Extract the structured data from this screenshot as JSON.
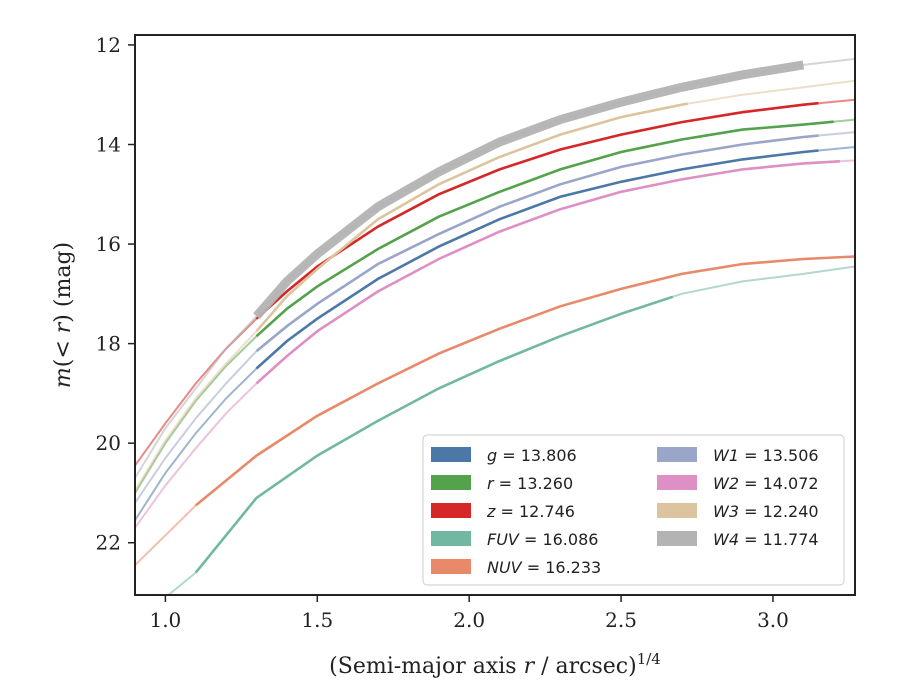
{
  "chart_data": {
    "type": "line",
    "xlabel": "(Semi-major axis r / arcsec)^{1/4}",
    "ylabel": "m(< r) (mag)",
    "xlim": [
      0.9,
      3.27
    ],
    "ylim": [
      23.05,
      11.8
    ],
    "y_inverted": true,
    "grid": false,
    "legend_position": "lower-right",
    "x_ticks": [
      1.0,
      1.5,
      2.0,
      2.5,
      3.0
    ],
    "x_tick_labels": [
      "1.0",
      "1.5",
      "2.0",
      "2.5",
      "3.0"
    ],
    "y_ticks": [
      12,
      14,
      16,
      18,
      20,
      22
    ],
    "y_tick_labels": [
      "12",
      "14",
      "16",
      "18",
      "20",
      "22"
    ],
    "series": [
      {
        "name": "g = 13.806",
        "color": "#4c78a8",
        "x": [
          0.9,
          1.0,
          1.1,
          1.2,
          1.3,
          1.4,
          1.5,
          1.7,
          1.9,
          2.1,
          2.3,
          2.5,
          2.7,
          2.9,
          3.1,
          3.27
        ],
        "y": [
          21.55,
          20.6,
          19.8,
          19.1,
          18.5,
          17.95,
          17.5,
          16.7,
          16.05,
          15.5,
          15.05,
          14.75,
          14.5,
          14.3,
          14.15,
          14.05
        ],
        "highlight_x": [
          1.3,
          3.15
        ]
      },
      {
        "name": "r = 13.260",
        "color": "#54a24b",
        "x": [
          0.9,
          1.0,
          1.1,
          1.2,
          1.3,
          1.4,
          1.5,
          1.7,
          1.9,
          2.1,
          2.3,
          2.5,
          2.7,
          2.9,
          3.1,
          3.27
        ],
        "y": [
          21.0,
          20.0,
          19.15,
          18.45,
          17.85,
          17.3,
          16.85,
          16.1,
          15.45,
          14.95,
          14.5,
          14.15,
          13.9,
          13.7,
          13.6,
          13.5
        ],
        "highlight_x": [
          1.3,
          3.2
        ]
      },
      {
        "name": "z = 12.746",
        "color": "#d62728",
        "x": [
          0.9,
          1.0,
          1.1,
          1.2,
          1.3,
          1.4,
          1.5,
          1.7,
          1.9,
          2.1,
          2.3,
          2.5,
          2.7,
          2.9,
          3.1,
          3.27
        ],
        "y": [
          20.45,
          19.6,
          18.8,
          18.1,
          17.5,
          16.95,
          16.45,
          15.65,
          15.0,
          14.5,
          14.1,
          13.8,
          13.55,
          13.35,
          13.2,
          13.1
        ],
        "highlight_x": [
          1.3,
          3.15
        ]
      },
      {
        "name": "FUV = 16.086",
        "color": "#72b7a1",
        "x": [
          1.0,
          1.1,
          1.3,
          1.5,
          1.7,
          1.9,
          2.1,
          2.3,
          2.5,
          2.7,
          2.9,
          3.1,
          3.27
        ],
        "y": [
          23.1,
          22.6,
          21.1,
          20.25,
          19.55,
          18.9,
          18.35,
          17.85,
          17.4,
          17.0,
          16.75,
          16.6,
          16.45
        ],
        "highlight_x": [
          1.1,
          2.67
        ]
      },
      {
        "name": "NUV = 16.233",
        "color": "#e8896a",
        "x": [
          0.9,
          1.0,
          1.1,
          1.2,
          1.3,
          1.5,
          1.7,
          1.9,
          2.1,
          2.3,
          2.5,
          2.7,
          2.9,
          3.1,
          3.27
        ],
        "y": [
          22.45,
          21.85,
          21.25,
          20.75,
          20.25,
          19.45,
          18.8,
          18.2,
          17.7,
          17.25,
          16.9,
          16.6,
          16.4,
          16.3,
          16.25
        ],
        "highlight_x": [
          1.1,
          3.27
        ]
      },
      {
        "name": "W1 = 13.506",
        "color": "#9aa6c9",
        "x": [
          0.9,
          1.0,
          1.1,
          1.2,
          1.3,
          1.4,
          1.5,
          1.7,
          1.9,
          2.1,
          2.3,
          2.5,
          2.7,
          2.9,
          3.1,
          3.27
        ],
        "y": [
          21.2,
          20.3,
          19.5,
          18.8,
          18.15,
          17.65,
          17.2,
          16.4,
          15.8,
          15.25,
          14.8,
          14.45,
          14.2,
          14.0,
          13.85,
          13.75
        ],
        "highlight_x": [
          1.3,
          3.15
        ]
      },
      {
        "name": "W2 = 14.072",
        "color": "#de8fc4",
        "x": [
          0.9,
          1.0,
          1.1,
          1.2,
          1.3,
          1.4,
          1.5,
          1.7,
          1.9,
          2.1,
          2.3,
          2.5,
          2.7,
          2.9,
          3.1,
          3.27
        ],
        "y": [
          21.7,
          20.85,
          20.1,
          19.4,
          18.8,
          18.25,
          17.75,
          16.95,
          16.3,
          15.75,
          15.3,
          14.95,
          14.7,
          14.5,
          14.38,
          14.32
        ],
        "highlight_x": [
          1.3,
          3.22
        ]
      },
      {
        "name": "W3 = 12.240",
        "color": "#dcc59e",
        "x": [
          0.9,
          1.0,
          1.1,
          1.2,
          1.3,
          1.4,
          1.5,
          1.7,
          1.9,
          2.1,
          2.3,
          2.5,
          2.7,
          2.9,
          3.1,
          3.27
        ],
        "y": [
          20.95,
          19.95,
          19.1,
          18.4,
          17.75,
          17.05,
          16.5,
          15.5,
          14.8,
          14.25,
          13.8,
          13.45,
          13.2,
          13.0,
          12.85,
          12.72
        ],
        "highlight_x": [
          1.3,
          2.72
        ]
      },
      {
        "name": "W4 = 11.774",
        "color": "#b3b3b3",
        "x": [
          0.9,
          1.0,
          1.1,
          1.2,
          1.3,
          1.4,
          1.5,
          1.7,
          1.9,
          2.1,
          2.3,
          2.5,
          2.7,
          2.9,
          3.1,
          3.27
        ],
        "y": [
          20.7,
          19.7,
          18.9,
          18.1,
          17.45,
          16.75,
          16.2,
          15.25,
          14.55,
          13.95,
          13.5,
          13.15,
          12.85,
          12.6,
          12.4,
          12.28
        ],
        "highlight_x": [
          1.3,
          3.1
        ]
      }
    ]
  }
}
